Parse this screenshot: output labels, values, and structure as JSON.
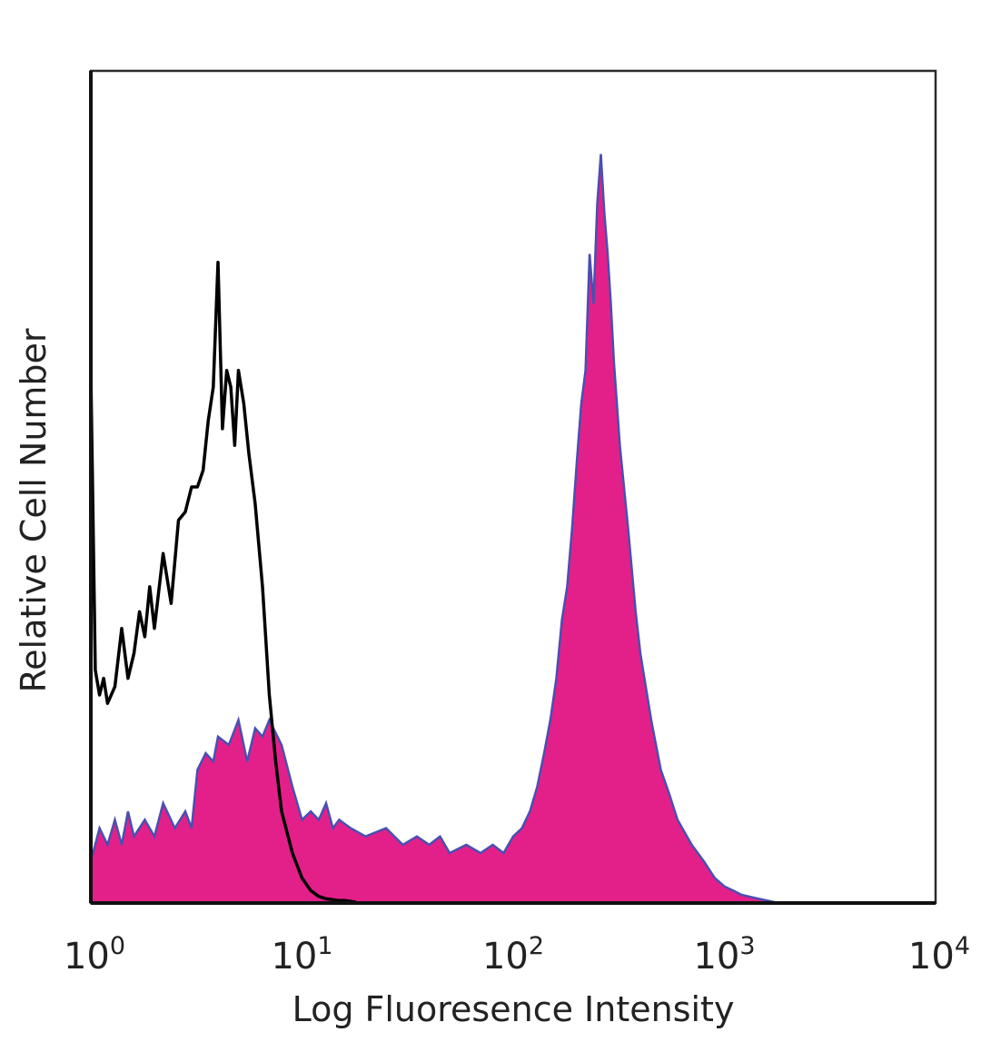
{
  "chart_data": {
    "type": "area",
    "xlabel": "Log Fluoresence Intensity",
    "ylabel": "Relative Cell Number",
    "x_scale": "log",
    "xlim": [
      1,
      10000
    ],
    "ylim": [
      0,
      100
    ],
    "grid": false,
    "legend": "none",
    "x_ticks": [
      {
        "value": 1,
        "base": "10",
        "exp": "0"
      },
      {
        "value": 10,
        "base": "10",
        "exp": "1"
      },
      {
        "value": 100,
        "base": "10",
        "exp": "2"
      },
      {
        "value": 1000,
        "base": "10",
        "exp": "3"
      },
      {
        "value": 10000,
        "base": "10",
        "exp": "4"
      }
    ],
    "series": [
      {
        "style": "black-outline",
        "color": "#000000",
        "x": [
          1.0,
          1.05,
          1.1,
          1.15,
          1.2,
          1.3,
          1.4,
          1.5,
          1.6,
          1.7,
          1.8,
          1.9,
          2.0,
          2.2,
          2.4,
          2.6,
          2.8,
          3.0,
          3.2,
          3.4,
          3.6,
          3.8,
          4.0,
          4.2,
          4.4,
          4.6,
          4.8,
          5.0,
          5.3,
          5.6,
          6.0,
          6.5,
          7.0,
          7.5,
          8.0,
          9.0,
          10.0,
          11.0,
          12.0,
          13.0,
          14.0,
          15.0,
          16.0,
          17.0,
          18.0
        ],
        "y": [
          64,
          28,
          25,
          27,
          24,
          26,
          33,
          27,
          30,
          35,
          32,
          38,
          33,
          42,
          36,
          46,
          47,
          50,
          50,
          52,
          58,
          62,
          77,
          57,
          64,
          62,
          55,
          64,
          60,
          54,
          48,
          38,
          25,
          17,
          11,
          6,
          3,
          1.5,
          0.8,
          0.5,
          0.4,
          0.3,
          0.3,
          0.2,
          0.1
        ]
      },
      {
        "style": "magenta-filled",
        "color": "#e3208a",
        "edge_color": "#4a4fb0",
        "x": [
          1.0,
          1.1,
          1.2,
          1.3,
          1.4,
          1.5,
          1.6,
          1.8,
          2.0,
          2.2,
          2.5,
          2.8,
          3.0,
          3.2,
          3.5,
          3.8,
          4.0,
          4.5,
          5.0,
          5.5,
          6.0,
          6.5,
          7.0,
          8.0,
          9.0,
          10.0,
          11.0,
          12.0,
          13.0,
          14.0,
          15.0,
          17.0,
          20.0,
          25.0,
          30.0,
          35.0,
          40.0,
          45.0,
          50.0,
          60.0,
          70.0,
          80.0,
          90.0,
          100.0,
          110.0,
          120.0,
          130.0,
          140.0,
          150.0,
          160.0,
          170.0,
          180.0,
          190.0,
          200.0,
          210.0,
          220.0,
          230.0,
          240.0,
          250.0,
          260.0,
          270.0,
          280.0,
          290.0,
          300.0,
          320.0,
          350.0,
          380.0,
          400.0,
          450.0,
          500.0,
          550.0,
          600.0,
          700.0,
          800.0,
          900.0,
          1000.0,
          1100.0,
          1200.0,
          1400.0,
          1600.0,
          1800.0
        ],
        "y": [
          5,
          9,
          7,
          10,
          7,
          11,
          8,
          10,
          8,
          12,
          9,
          11,
          9,
          16,
          18,
          17,
          20,
          19,
          22,
          17,
          21,
          20,
          22,
          19,
          14,
          10,
          11,
          10,
          12,
          9,
          10,
          9,
          8,
          9,
          7,
          8,
          7,
          8,
          6,
          7,
          6,
          7,
          6,
          8,
          9,
          11,
          14,
          18,
          22,
          27,
          34,
          38,
          45,
          53,
          60,
          64,
          78,
          72,
          84,
          90,
          83,
          78,
          72,
          65,
          55,
          45,
          35,
          30,
          22,
          16,
          13,
          10,
          7,
          5,
          3,
          2,
          1.5,
          1,
          0.6,
          0.3,
          0
        ]
      }
    ]
  }
}
